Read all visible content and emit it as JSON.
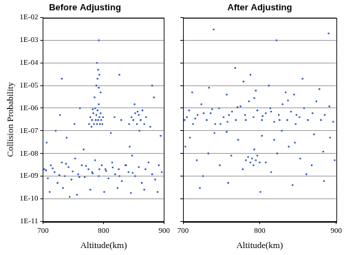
{
  "chart_data": [
    {
      "type": "scatter",
      "title": "Before Adjusting",
      "x_label": "Altitude(km)",
      "y_label": "Collision Probability",
      "color": "#2a52be",
      "marker": "circle",
      "log": "y",
      "grid": true,
      "xlim": [
        700,
        900
      ],
      "xticks": [
        700,
        800,
        900
      ],
      "ylim": [
        1e-11,
        0.01
      ],
      "yticks": [
        {
          "value": 1e-11,
          "label": "1E-11"
        },
        {
          "value": 1e-10,
          "label": "1E-10"
        },
        {
          "value": 1e-09,
          "label": "1E-09"
        },
        {
          "value": 1e-08,
          "label": "1E-08"
        },
        {
          "value": 1e-07,
          "label": "1E-07"
        },
        {
          "value": 1e-06,
          "label": "1E-06"
        },
        {
          "value": 1e-05,
          "label": "1E-05"
        },
        {
          "value": 0.0001,
          "label": "1E-04"
        },
        {
          "value": 0.001,
          "label": "1E-03"
        },
        {
          "value": 0.01,
          "label": "1E-02"
        }
      ],
      "x": [
        702,
        708,
        713,
        719,
        724,
        731,
        736,
        742,
        747,
        753,
        758,
        764,
        769,
        775,
        781,
        786,
        792,
        797,
        803,
        808,
        814,
        819,
        825,
        830,
        836,
        841,
        847,
        852,
        858,
        863,
        869,
        874,
        880,
        885,
        891,
        896,
        705,
        716,
        727,
        738,
        749,
        760,
        771,
        782,
        793,
        804,
        815,
        826,
        837,
        848,
        711,
        733,
        756,
        778,
        801,
        823,
        845,
        867,
        889,
        744,
        706,
        721,
        739,
        752,
        767,
        812,
        829,
        843,
        877,
        894,
        728,
        761,
        818,
        856,
        883,
        776,
        778,
        780,
        781,
        783,
        784,
        786,
        787,
        788,
        789,
        790,
        791,
        792,
        793,
        794,
        795,
        796,
        798,
        799,
        782,
        785,
        788,
        790,
        791,
        792,
        793,
        795,
        789,
        842,
        846,
        849,
        852,
        855,
        858,
        861,
        864,
        867,
        870,
        851,
        859,
        792,
        826,
        731,
        880
      ],
      "values": [
        2e-09,
        8e-10,
        3e-09,
        1.5e-09,
        5e-10,
        4e-09,
        1e-09,
        2.5e-09,
        7e-10,
        6e-09,
        1.2e-09,
        3e-09,
        9e-10,
        2e-09,
        1.5e-09,
        5e-09,
        1e-09,
        3e-09,
        2e-09,
        8e-10,
        4e-09,
        1.2e-09,
        2e-09,
        6e-10,
        3e-09,
        1.5e-09,
        8e-09,
        1e-09,
        2.5e-09,
        5e-10,
        2e-09,
        4e-09,
        1.2e-09,
        7e-10,
        3e-09,
        1.5e-09,
        1.8e-09,
        2.2e-09,
        1.1e-09,
        3.5e-09,
        1.6e-09,
        9e-10,
        2.8e-09,
        1.3e-09,
        2e-09,
        1.7e-09,
        2.4e-09,
        1e-09,
        3e-09,
        1.4e-09,
        2e-10,
        3e-10,
        1.5e-10,
        2.5e-10,
        2e-10,
        3e-10,
        1.8e-10,
        2.5e-10,
        2e-10,
        1.2e-10,
        3e-08,
        1e-07,
        5e-08,
        2e-07,
        1.5e-08,
        8e-08,
        3e-07,
        2e-08,
        1.5e-07,
        6e-08,
        5e-07,
        1e-06,
        4e-07,
        7e-07,
        3e-06,
        2e-07,
        4e-07,
        1.5e-07,
        3e-07,
        6e-07,
        2e-07,
        1e-06,
        3e-07,
        5e-07,
        2e-07,
        8e-07,
        3e-07,
        1.5e-06,
        4e-07,
        2e-07,
        6e-07,
        3e-07,
        2e-07,
        4e-07,
        9e-07,
        3e-06,
        1e-05,
        2e-05,
        5e-05,
        8e-06,
        3e-05,
        5e-06,
        0.0001,
        2e-07,
        4e-07,
        3e-07,
        6e-07,
        2e-07,
        5e-07,
        3e-07,
        8e-07,
        2e-07,
        4e-07,
        1.5e-06,
        1e-07,
        0.001,
        3e-05,
        2e-05,
        1e-05
      ]
    },
    {
      "type": "scatter",
      "title": "After Adjusting",
      "x_label": "Altitude(km)",
      "color": "#2a52be",
      "marker": "circle",
      "log": "y",
      "grid": true,
      "tick_labels": "x",
      "xlim": [
        700,
        900
      ],
      "xticks": [
        700,
        800,
        900
      ],
      "ylim": [
        1e-11,
        0.01
      ],
      "yticks": [
        {
          "value": 1e-11,
          "label": "1E-11"
        },
        {
          "value": 1e-10,
          "label": "1E-10"
        },
        {
          "value": 1e-09,
          "label": "1E-09"
        },
        {
          "value": 1e-08,
          "label": "1E-08"
        },
        {
          "value": 1e-07,
          "label": "1E-07"
        },
        {
          "value": 1e-06,
          "label": "1E-06"
        },
        {
          "value": 1e-05,
          "label": "1E-05"
        },
        {
          "value": 0.0001,
          "label": "1E-04"
        },
        {
          "value": 0.001,
          "label": "1E-03"
        },
        {
          "value": 0.01,
          "label": "1E-02"
        }
      ],
      "x": [
        702,
        708,
        713,
        719,
        724,
        731,
        736,
        742,
        747,
        753,
        758,
        764,
        769,
        775,
        781,
        786,
        792,
        797,
        803,
        808,
        814,
        819,
        825,
        830,
        836,
        841,
        847,
        852,
        858,
        863,
        869,
        874,
        880,
        885,
        891,
        896,
        705,
        716,
        727,
        738,
        749,
        760,
        771,
        782,
        793,
        804,
        815,
        826,
        837,
        848,
        712,
        734,
        757,
        779,
        788,
        795,
        812,
        834,
        856,
        878,
        768,
        845,
        703,
        718,
        733,
        748,
        763,
        778,
        793,
        808,
        823,
        838,
        853,
        868,
        883,
        898,
        782,
        785,
        788,
        790,
        792,
        795,
        797,
        800,
        726,
        815,
        861,
        709,
        741,
        772,
        803,
        829,
        846,
        871,
        892,
        757,
        819,
        722,
        759,
        801,
        843,
        884,
        740,
        822,
        890
      ],
      "values": [
        3e-07,
        8e-07,
        2e-07,
        5e-07,
        1.5e-06,
        3e-07,
        6e-07,
        2e-07,
        1e-06,
        4e-07,
        2.5e-07,
        7e-07,
        3e-07,
        1.2e-06,
        5e-07,
        2e-06,
        4e-07,
        8e-07,
        3e-07,
        6e-07,
        1e-06,
        2.5e-07,
        5e-07,
        1.5e-06,
        3e-07,
        7e-07,
        2e-07,
        4e-07,
        1e-06,
        3e-07,
        6e-07,
        2e-06,
        3e-07,
        5e-07,
        1.2e-06,
        2.5e-07,
        4e-07,
        3.5e-07,
        6e-07,
        9e-07,
        2e-07,
        5e-07,
        1.1e-06,
        3e-07,
        2.8e-06,
        4.5e-07,
        7e-07,
        3e-07,
        2.2e-06,
        5e-07,
        5e-06,
        8e-06,
        4e-06,
        1.5e-05,
        3e-05,
        6e-06,
        1e-05,
        5e-06,
        2e-05,
        7e-06,
        6e-05,
        4e-06,
        2e-08,
        5e-09,
        1e-08,
        3e-09,
        8e-09,
        2e-09,
        1.5e-08,
        4e-09,
        1e-08,
        2e-08,
        6e-09,
        3e-09,
        1.2e-08,
        5e-09,
        5e-09,
        7e-09,
        4e-09,
        6e-09,
        3e-09,
        5e-09,
        8e-09,
        4e-09,
        1e-09,
        1.5e-09,
        1.2e-09,
        5e-08,
        8e-08,
        4e-08,
        6e-08,
        1e-07,
        3e-08,
        7e-08,
        5e-08,
        9e-08,
        4e-08,
        3e-10,
        5e-10,
        2e-10,
        4e-10,
        6e-10,
        0.003,
        0.001,
        0.002
      ]
    }
  ]
}
